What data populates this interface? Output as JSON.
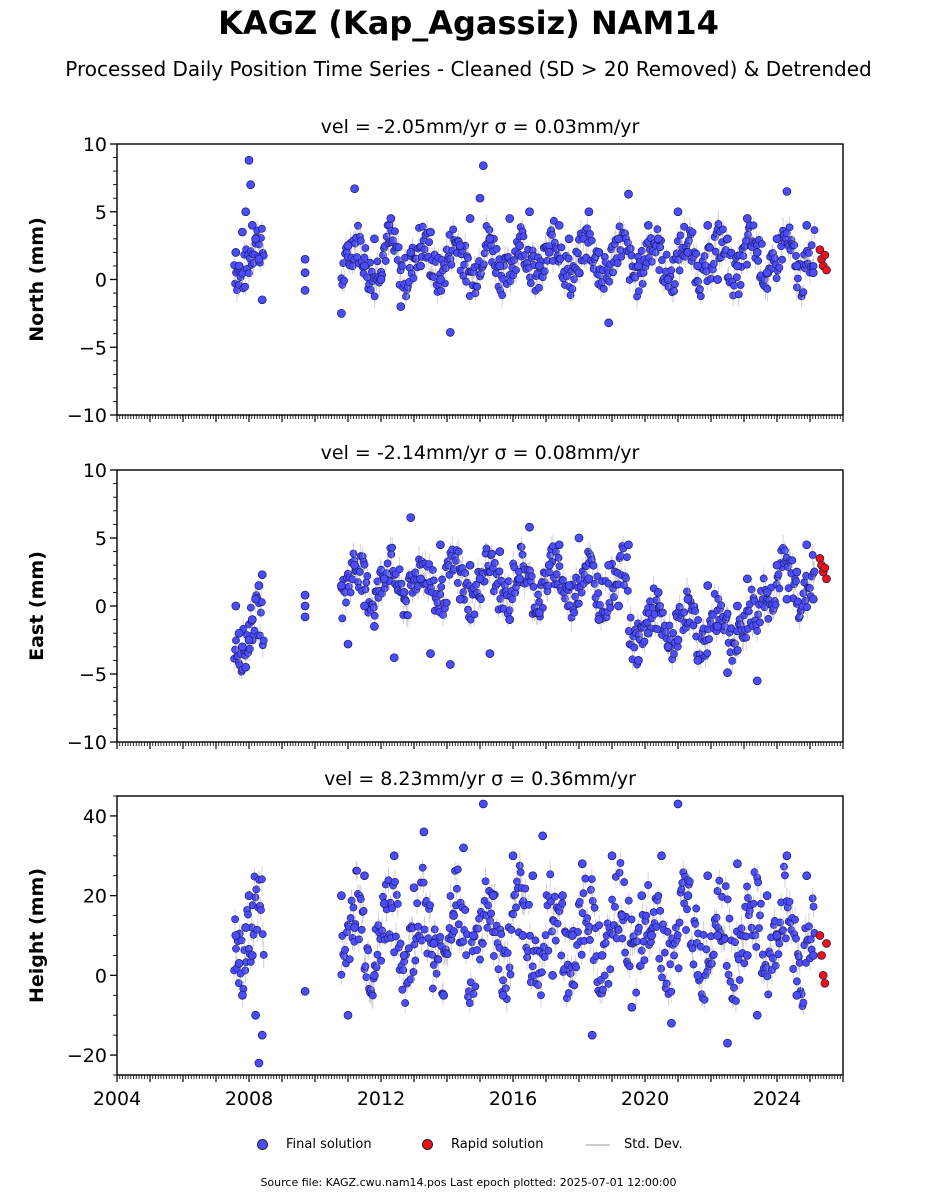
{
  "header": {
    "title": "KAGZ (Kap_Agassiz) NAM14",
    "subtitle": "Processed Daily Position Time Series - Cleaned (SD > 20 Removed) & Detrended"
  },
  "colors": {
    "final": "#4b4bff",
    "rapid": "#ee1111",
    "stddev": "#b0b0b0"
  },
  "chart_data": [
    {
      "type": "scatter",
      "panel": "north",
      "title": "vel = -2.05mm/yr   σ = 0.03mm/yr",
      "ylabel": "North (mm)",
      "xlim": [
        2004,
        2026
      ],
      "ylim": [
        -10,
        10
      ],
      "yticks": [
        -10,
        -5,
        0,
        5,
        10
      ],
      "ytick_labels": [
        "−10",
        "−5",
        "0",
        "5",
        "10"
      ],
      "series": [
        {
          "name": "Final solution",
          "x": [
            2007.6,
            2007.7,
            2007.8,
            2007.9,
            2008.0,
            2008.05,
            2008.1,
            2008.2,
            2008.3,
            2008.4,
            2009.7,
            2009.7,
            2009.7,
            2010.8,
            2011.0,
            2011.2,
            2011.5,
            2011.8,
            2012.0,
            2012.3,
            2012.6,
            2012.9,
            2013.2,
            2013.5,
            2013.8,
            2014.1,
            2014.4,
            2014.7,
            2015.0,
            2015.1,
            2015.3,
            2015.6,
            2015.9,
            2016.2,
            2016.5,
            2016.8,
            2017.1,
            2017.4,
            2017.7,
            2018.0,
            2018.3,
            2018.6,
            2018.9,
            2019.2,
            2019.5,
            2019.8,
            2020.1,
            2020.4,
            2020.7,
            2021.0,
            2021.3,
            2021.6,
            2021.9,
            2022.2,
            2022.5,
            2022.8,
            2023.1,
            2023.4,
            2023.7,
            2024.0,
            2024.3,
            2024.6,
            2024.9,
            2025.1
          ],
          "y": [
            2.0,
            1.0,
            3.5,
            5.0,
            8.8,
            7.0,
            4.0,
            3.0,
            1.5,
            -1.5,
            1.5,
            0.5,
            -0.8,
            -2.5,
            2.5,
            6.7,
            1.0,
            3.0,
            0.0,
            4.5,
            -2.0,
            2.0,
            1.0,
            3.5,
            0.0,
            -3.9,
            2.5,
            4.5,
            6.0,
            8.4,
            3.0,
            1.0,
            4.5,
            2.5,
            5.0,
            1.0,
            2.0,
            4.0,
            3.0,
            0.5,
            5.0,
            2.0,
            -3.2,
            3.0,
            6.3,
            1.0,
            4.0,
            3.0,
            0.0,
            5.0,
            2.0,
            1.0,
            4.0,
            0.0,
            3.0,
            1.0,
            4.5,
            2.0,
            0.5,
            3.0,
            6.5,
            1.0,
            4.0,
            0.5
          ]
        },
        {
          "name": "Rapid solution",
          "x": [
            2025.3,
            2025.35,
            2025.4,
            2025.45,
            2025.5
          ],
          "y": [
            2.2,
            1.5,
            1.0,
            1.8,
            0.7
          ]
        }
      ]
    },
    {
      "type": "scatter",
      "panel": "east",
      "title": "vel = -2.14mm/yr   σ = 0.08mm/yr",
      "ylabel": "East (mm)",
      "xlim": [
        2004,
        2026
      ],
      "ylim": [
        -10,
        10
      ],
      "yticks": [
        -10,
        -5,
        0,
        5,
        10
      ],
      "ytick_labels": [
        "−10",
        "−5",
        "0",
        "5",
        "10"
      ],
      "series": [
        {
          "name": "Final solution",
          "x": [
            2007.6,
            2007.7,
            2007.8,
            2007.9,
            2008.0,
            2008.1,
            2008.2,
            2008.3,
            2008.4,
            2009.7,
            2009.7,
            2009.7,
            2010.8,
            2011.0,
            2011.2,
            2011.5,
            2011.8,
            2012.1,
            2012.4,
            2012.7,
            2012.9,
            2013.2,
            2013.5,
            2013.8,
            2014.1,
            2014.4,
            2014.7,
            2015.0,
            2015.3,
            2015.6,
            2015.9,
            2016.2,
            2016.5,
            2016.8,
            2017.1,
            2017.4,
            2017.7,
            2018.0,
            2018.3,
            2018.6,
            2018.9,
            2019.2,
            2019.5,
            2019.8,
            2020.1,
            2020.4,
            2020.7,
            2021.0,
            2021.3,
            2021.6,
            2021.9,
            2022.2,
            2022.5,
            2022.8,
            2023.1,
            2023.4,
            2023.7,
            2024.0,
            2024.3,
            2024.6,
            2024.9,
            2025.1
          ],
          "y": [
            0.0,
            -2.0,
            -3.0,
            -4.5,
            -2.5,
            -1.0,
            0.5,
            1.5,
            2.3,
            0.8,
            0.0,
            -0.8,
            1.5,
            -2.8,
            3.0,
            0.0,
            -1.5,
            2.0,
            -3.8,
            1.0,
            6.5,
            2.0,
            -3.5,
            4.5,
            -4.3,
            0.5,
            3.0,
            2.0,
            -3.5,
            4.0,
            -1.0,
            2.0,
            5.8,
            -0.5,
            3.0,
            4.5,
            1.5,
            5.0,
            2.0,
            -1.0,
            3.0,
            0.0,
            4.5,
            -4.0,
            -2.0,
            1.0,
            -3.0,
            -2.5,
            0.5,
            -4.0,
            1.5,
            -1.5,
            -4.9,
            0.0,
            2.0,
            -5.5,
            1.0,
            3.0,
            0.5,
            2.5,
            4.5,
            0.5
          ]
        },
        {
          "name": "Rapid solution",
          "x": [
            2025.3,
            2025.35,
            2025.4,
            2025.45,
            2025.5
          ],
          "y": [
            3.5,
            3.0,
            2.5,
            2.8,
            2.0
          ]
        }
      ]
    },
    {
      "type": "scatter",
      "panel": "height",
      "title": "vel = 8.23mm/yr   σ = 0.36mm/yr",
      "ylabel": "Height (mm)",
      "xlim": [
        2004,
        2026
      ],
      "ylim": [
        -25,
        45
      ],
      "yticks": [
        -20,
        0,
        20,
        40
      ],
      "ytick_labels": [
        "−20",
        "0",
        "20",
        "40"
      ],
      "series": [
        {
          "name": "Final solution",
          "x": [
            2007.6,
            2007.7,
            2007.8,
            2007.9,
            2008.0,
            2008.1,
            2008.2,
            2008.3,
            2008.4,
            2009.7,
            2010.8,
            2011.0,
            2011.2,
            2011.5,
            2011.8,
            2012.1,
            2012.4,
            2012.7,
            2013.0,
            2013.3,
            2013.6,
            2013.9,
            2014.2,
            2014.5,
            2014.8,
            2015.1,
            2015.4,
            2015.7,
            2016.0,
            2016.3,
            2016.6,
            2016.9,
            2017.2,
            2017.5,
            2017.8,
            2018.1,
            2018.4,
            2018.7,
            2019.0,
            2019.3,
            2019.6,
            2019.9,
            2020.2,
            2020.5,
            2020.8,
            2021.0,
            2021.3,
            2021.6,
            2021.9,
            2022.2,
            2022.5,
            2022.8,
            2023.1,
            2023.4,
            2023.7,
            2024.0,
            2024.3,
            2024.6,
            2024.9,
            2025.1
          ],
          "y": [
            10.0,
            3.0,
            -5.0,
            12.0,
            20.0,
            5.0,
            -10.0,
            -22.0,
            -15.0,
            -4.0,
            20.0,
            -10.0,
            12.0,
            25.0,
            0.0,
            18.0,
            30.0,
            5.0,
            22.0,
            36.0,
            8.0,
            -5.0,
            15.0,
            32.0,
            10.0,
            43.0,
            20.0,
            -5.0,
            30.0,
            10.0,
            25.0,
            35.0,
            0.0,
            20.0,
            10.0,
            28.0,
            -15.0,
            5.0,
            30.0,
            15.0,
            -8.0,
            20.0,
            10.0,
            30.0,
            -12.0,
            43.0,
            20.0,
            0.0,
            25.0,
            10.0,
            -17.0,
            28.0,
            5.0,
            -10.0,
            20.0,
            10.0,
            30.0,
            -5.0,
            25.0,
            5.0
          ]
        },
        {
          "name": "Rapid solution",
          "x": [
            2025.3,
            2025.35,
            2025.4,
            2025.45,
            2025.5
          ],
          "y": [
            10.0,
            5.0,
            0.0,
            -2.0,
            8.0
          ]
        }
      ]
    }
  ],
  "xaxis": {
    "tick_years": [
      2004,
      2008,
      2012,
      2016,
      2020,
      2024
    ],
    "tick_labels": [
      "2004",
      "2008",
      "2012",
      "2016",
      "2020",
      "2024"
    ]
  },
  "legend": {
    "final": "Final solution",
    "rapid": "Rapid solution",
    "stddev": "Std. Dev."
  },
  "footer": "Source file: KAGZ.cwu.nam14.pos  Last epoch plotted: 2025-07-01 12:00:00"
}
